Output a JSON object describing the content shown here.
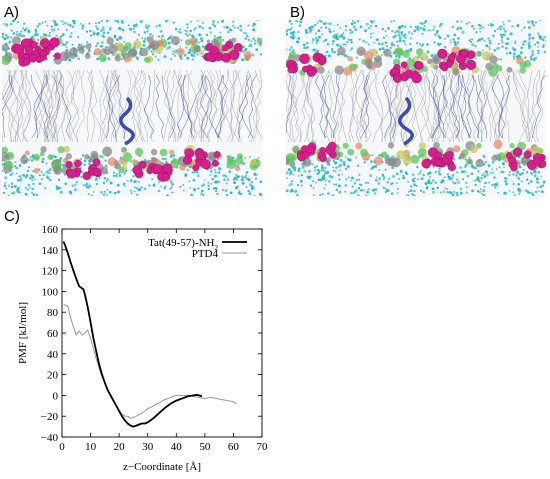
{
  "panels": {
    "a_label": "A)",
    "b_label": "B)",
    "c_label": "C)"
  },
  "snapshots": [
    {
      "name": "snapshot-a",
      "description_icon": "membrane-simulation-snapshot"
    },
    {
      "name": "snapshot-b",
      "description_icon": "membrane-simulation-snapshot"
    }
  ],
  "colors": {
    "water": "#1fb8c8",
    "headgroup_magenta": "#d81e8c",
    "headgroup_green": "#5cc45a",
    "headgroup_gray": "#8a8a8a",
    "lipid_tail": "#9a9aa6",
    "peptide": "#3a4ab8",
    "series_tat": "#000000",
    "series_ptd4": "#999999"
  },
  "chart_data": {
    "type": "line",
    "xlabel": "z−Coordinate [Å]",
    "ylabel": "PMF [kJ/mol]",
    "xlim": [
      0,
      70
    ],
    "ylim": [
      -40,
      160
    ],
    "xticks": [
      "0",
      "10",
      "20",
      "30",
      "40",
      "50",
      "60",
      "70"
    ],
    "yticks": [
      "160",
      "140",
      "120",
      "100",
      "80",
      "60",
      "40",
      "20",
      "0",
      "−20",
      "−40"
    ],
    "legend_position": "top-right",
    "grid": false,
    "series": [
      {
        "name": "Tat(49-57)-NH",
        "name_subscript": "2",
        "color": "#000000",
        "x": [
          0.5,
          1,
          2,
          3,
          4,
          5,
          6,
          7,
          7.5,
          8,
          9,
          10,
          11,
          12,
          13,
          14,
          15,
          16,
          17,
          18,
          19,
          20,
          21,
          22,
          23,
          24,
          25,
          26,
          27,
          28,
          29,
          30,
          32,
          34,
          36,
          38,
          40,
          42,
          44,
          46,
          47,
          48,
          49
        ],
        "y": [
          148,
          145,
          137,
          128,
          120,
          112,
          105,
          103,
          102,
          97,
          85,
          70,
          55,
          42,
          30,
          20,
          12,
          5,
          0,
          -5,
          -10,
          -15,
          -20,
          -24,
          -27,
          -29,
          -30,
          -29,
          -28,
          -27,
          -27,
          -26,
          -22,
          -17,
          -12,
          -8,
          -5,
          -3,
          -1,
          0,
          0.5,
          0,
          -1
        ]
      },
      {
        "name": "PTD4",
        "color": "#999999",
        "x": [
          0.5,
          1,
          2,
          3,
          4,
          5,
          6,
          7,
          8,
          9,
          10,
          11,
          12,
          13,
          14,
          15,
          16,
          17,
          18,
          19,
          20,
          21,
          22,
          23,
          24,
          26,
          28,
          30,
          32,
          34,
          36,
          38,
          40,
          42,
          44,
          46,
          48,
          50,
          52,
          54,
          56,
          58,
          60,
          61
        ],
        "y": [
          87,
          87,
          86,
          75,
          66,
          58,
          62,
          58,
          60,
          63,
          55,
          45,
          35,
          26,
          18,
          12,
          5,
          0,
          -5,
          -10,
          -15,
          -18,
          -20,
          -20,
          -22,
          -20,
          -17,
          -13,
          -10,
          -7,
          -4,
          -2,
          0,
          0,
          0,
          -1,
          -2,
          -3,
          -2,
          -3,
          -4,
          -5,
          -6,
          -8
        ]
      }
    ]
  }
}
